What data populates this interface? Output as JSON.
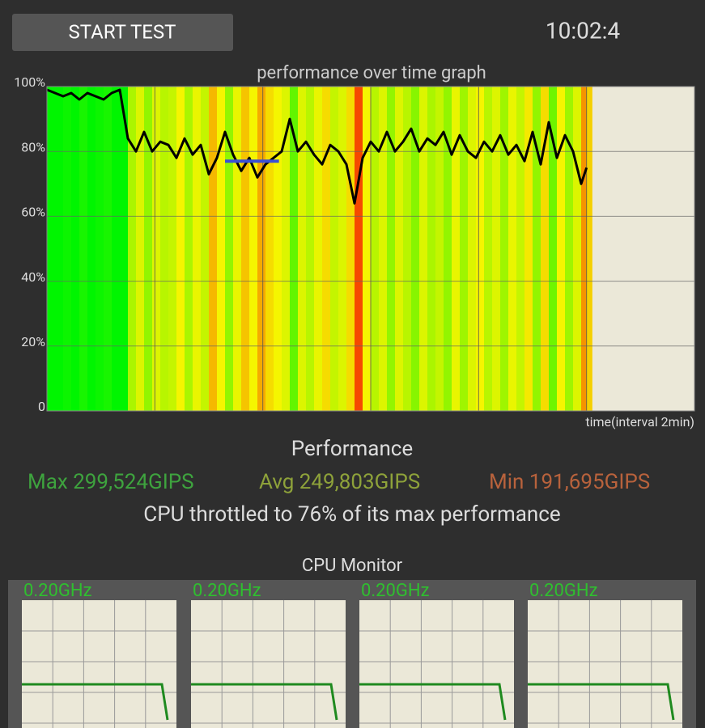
{
  "header": {
    "button": "START TEST",
    "time": "10:02:4"
  },
  "chart_data": {
    "type": "line",
    "title": "performance over time graph",
    "x_label": "time(interval 2min)",
    "x": [
      0,
      0.15,
      0.3,
      0.45,
      0.6,
      0.75,
      0.9,
      1.05,
      1.2,
      1.35,
      1.5,
      1.65,
      1.8,
      1.95,
      2.1,
      2.25,
      2.4,
      2.55,
      2.7,
      2.85,
      3.0,
      3.15,
      3.3,
      3.45,
      3.6,
      3.75,
      3.9,
      4.05,
      4.2,
      4.35,
      4.5,
      4.65,
      4.8,
      4.95,
      5.1,
      5.25,
      5.4,
      5.55,
      5.7,
      5.85,
      6.0,
      6.15,
      6.3,
      6.45,
      6.6,
      6.75,
      6.9,
      7.05,
      7.2,
      7.35,
      7.5,
      7.65,
      7.8,
      7.95,
      8.1,
      8.25,
      8.4,
      8.55,
      8.7,
      8.85,
      9.0,
      9.15,
      9.3,
      9.45,
      9.6,
      9.75,
      9.9,
      10.0
    ],
    "values": [
      99,
      98,
      97,
      98,
      96,
      98,
      97,
      96,
      98,
      99,
      84,
      80,
      86,
      80,
      83,
      82,
      78,
      84,
      79,
      82,
      73,
      78,
      86,
      79,
      74,
      78,
      72,
      76,
      78,
      80,
      90,
      80,
      83,
      79,
      76,
      82,
      80,
      76,
      64,
      78,
      83,
      80,
      86,
      80,
      83,
      87,
      80,
      84,
      82,
      86,
      79,
      85,
      80,
      78,
      83,
      80,
      85,
      79,
      82,
      77,
      86,
      76,
      89,
      78,
      85,
      80,
      70,
      75
    ],
    "color": "#000000",
    "xlim": [
      0,
      12
    ],
    "xticks": [
      0,
      2,
      4,
      6,
      8,
      10,
      12
    ],
    "ylim": [
      0,
      100
    ],
    "yticks": [
      0,
      {
        "value": 20,
        "label": "20%"
      },
      {
        "value": 40,
        "label": "40%"
      },
      {
        "value": 60,
        "label": "60%"
      },
      {
        "value": 80,
        "label": "80%"
      },
      {
        "value": 100,
        "label": "100%"
      }
    ],
    "grid": true,
    "reference_line": {
      "y": 77,
      "x_start": 3.3,
      "x_end": 4.3,
      "color": "#3a4fd6"
    }
  },
  "performance": {
    "title": "Performance",
    "max": "Max 299,524GIPS",
    "avg": "Avg 249,803GIPS",
    "min": "Min 191,695GIPS",
    "summary": "CPU throttled to 76% of its max performance"
  },
  "cpu_monitor": {
    "title": "CPU Monitor",
    "cores": [
      "0.20GHz",
      "0.20GHz",
      "0.20GHz",
      "0.20GHz"
    ]
  }
}
